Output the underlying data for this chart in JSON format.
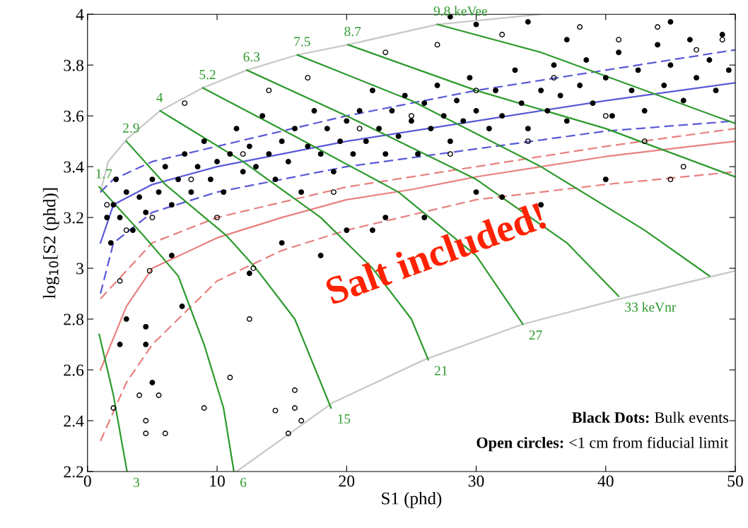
{
  "chart_data": {
    "type": "scatter",
    "xlabel": "S1 (phd)",
    "ylabel": "log$_{10}$[S2 (phd)]",
    "xlim": [
      0,
      50
    ],
    "xticks": [
      0,
      10,
      20,
      30,
      40,
      50
    ],
    "ylim": [
      2.2,
      4
    ],
    "yticks": [
      2.2,
      2.4,
      2.6,
      2.8,
      3,
      3.2,
      3.4,
      3.6,
      3.8,
      4
    ],
    "grid": false,
    "legend": false,
    "series": [
      {
        "type": "line",
        "color": "#c8c8c8",
        "line_style": "solid",
        "x": [
          1,
          1.6,
          3.06,
          5.6,
          8.9,
          12.3,
          16.2,
          20.1,
          27,
          35
        ],
        "values": [
          3.3,
          3.42,
          3.51,
          3.62,
          3.71,
          3.78,
          3.84,
          3.88,
          3.96,
          4.0
        ]
      },
      {
        "type": "line",
        "color": "#c8c8c8",
        "line_style": "solid",
        "x": [
          11.5,
          18.9,
          26,
          33.6,
          40.7,
          50
        ],
        "values": [
          2.2,
          2.47,
          2.64,
          2.78,
          2.875,
          2.99
        ]
      },
      {
        "type": "line",
        "color": "#5a5ad8",
        "line_style": "solid",
        "x": [
          1,
          2,
          5,
          10,
          20,
          30,
          40,
          50
        ],
        "values": [
          3.1,
          3.25,
          3.33,
          3.4,
          3.5,
          3.58,
          3.66,
          3.73
        ]
      },
      {
        "type": "line",
        "color": "#5a5ad8",
        "line_style": "dashed",
        "x": [
          1,
          2,
          5,
          10,
          20,
          30,
          40,
          50
        ],
        "values": [
          3.3,
          3.35,
          3.42,
          3.48,
          3.6,
          3.7,
          3.78,
          3.86
        ]
      },
      {
        "type": "line",
        "color": "#5a5ad8",
        "line_style": "dashed",
        "x": [
          1,
          2,
          5,
          10,
          20,
          30,
          40,
          50
        ],
        "values": [
          2.9,
          3.1,
          3.22,
          3.3,
          3.4,
          3.47,
          3.54,
          3.58
        ]
      },
      {
        "type": "line",
        "color": "#e88080",
        "line_style": "solid",
        "x": [
          1,
          3,
          5,
          10,
          15,
          20,
          25,
          30,
          40,
          50
        ],
        "values": [
          2.6,
          2.85,
          3.0,
          3.12,
          3.2,
          3.27,
          3.31,
          3.36,
          3.44,
          3.5
        ]
      },
      {
        "type": "line",
        "color": "#e88080",
        "line_style": "dashed",
        "x": [
          1,
          3,
          5,
          10,
          15,
          20,
          30,
          40,
          50
        ],
        "values": [
          2.32,
          2.55,
          2.7,
          2.95,
          3.07,
          3.15,
          3.27,
          3.33,
          3.38
        ]
      },
      {
        "type": "line",
        "color": "#e88080",
        "line_style": "dashed",
        "x": [
          1,
          5,
          10,
          20,
          30,
          40,
          50
        ],
        "values": [
          2.88,
          3.1,
          3.2,
          3.32,
          3.4,
          3.48,
          3.55
        ]
      },
      {
        "type": "line",
        "color": "#2e9a2e",
        "line_style": "solid",
        "x": [
          0.9,
          2,
          3.05
        ],
        "values": [
          2.74,
          2.5,
          2.2
        ]
      },
      {
        "type": "line",
        "color": "#2e9a2e",
        "line_style": "solid",
        "x": [
          0.9,
          4.3,
          7,
          9,
          10.5,
          11.3
        ],
        "values": [
          3.32,
          3.13,
          2.97,
          2.7,
          2.45,
          2.2
        ]
      },
      {
        "type": "line",
        "color": "#2e9a2e",
        "line_style": "solid",
        "x": [
          3,
          6,
          10.7,
          13,
          16,
          18.8
        ],
        "values": [
          3.5,
          3.33,
          3.13,
          3.0,
          2.8,
          2.45
        ]
      },
      {
        "type": "line",
        "color": "#2e9a2e",
        "line_style": "solid",
        "x": [
          5.6,
          12,
          18,
          22,
          25,
          26.3
        ],
        "values": [
          3.62,
          3.42,
          3.2,
          3.0,
          2.8,
          2.64
        ]
      },
      {
        "type": "line",
        "color": "#2e9a2e",
        "line_style": "solid",
        "x": [
          8.9,
          16,
          24,
          30,
          33.6
        ],
        "values": [
          3.71,
          3.52,
          3.3,
          3.05,
          2.78
        ]
      },
      {
        "type": "line",
        "color": "#2e9a2e",
        "line_style": "solid",
        "x": [
          12.3,
          20,
          30,
          37,
          41
        ],
        "values": [
          3.78,
          3.6,
          3.35,
          3.1,
          2.89
        ]
      },
      {
        "type": "line",
        "color": "#2e9a2e",
        "line_style": "solid",
        "x": [
          16.2,
          25,
          35,
          43,
          48
        ],
        "values": [
          3.84,
          3.66,
          3.4,
          3.15,
          2.97
        ]
      },
      {
        "type": "line",
        "color": "#2e9a2e",
        "line_style": "solid",
        "x": [
          20.1,
          30,
          40,
          50
        ],
        "values": [
          3.88,
          3.7,
          3.55,
          3.36
        ]
      },
      {
        "type": "line",
        "color": "#2e9a2e",
        "line_style": "solid",
        "x": [
          27,
          35,
          50
        ],
        "values": [
          3.96,
          3.85,
          3.57
        ]
      },
      {
        "color": "#000000",
        "marker": "circle",
        "x": [
          1.5,
          2,
          2.5,
          3,
          1.8,
          2.2,
          3.5,
          4,
          4.5,
          5,
          5.5,
          6,
          6.5,
          7,
          7.5,
          8,
          8.5,
          9,
          9.5,
          10,
          10.5,
          11,
          11.5,
          12,
          12.5,
          13,
          13.5,
          14,
          14.5,
          15,
          15.5,
          16,
          16.5,
          17,
          17.5,
          18,
          18.5,
          19,
          19.5,
          20,
          20.5,
          21,
          21.5,
          22,
          22.5,
          23,
          23.5,
          24,
          24.5,
          25,
          25.5,
          26,
          26.5,
          27,
          27.5,
          28,
          28.5,
          29,
          29.5,
          30,
          31,
          31.5,
          32,
          33,
          33.5,
          34,
          35,
          35.5,
          36,
          36.5,
          37,
          38,
          38.5,
          39,
          40,
          40.5,
          41,
          42,
          42.5,
          43,
          44,
          44.5,
          45,
          46,
          46.5,
          47,
          48,
          48.5,
          49,
          49.5,
          2.5,
          3,
          4.5,
          4.5,
          5,
          6.5,
          7.3,
          12.5,
          15,
          18,
          20,
          23,
          30,
          32,
          35,
          40,
          28,
          30,
          37,
          45,
          22,
          26,
          34
        ],
        "values": [
          3.2,
          3.25,
          3.2,
          3.3,
          3.1,
          3.35,
          3.15,
          3.28,
          3.22,
          3.35,
          3.3,
          3.4,
          3.25,
          3.35,
          3.45,
          3.3,
          3.4,
          3.5,
          3.35,
          3.42,
          3.3,
          3.45,
          3.55,
          3.38,
          3.48,
          3.4,
          3.6,
          3.45,
          3.35,
          3.5,
          3.42,
          3.55,
          3.3,
          3.48,
          3.62,
          3.45,
          3.55,
          3.38,
          3.5,
          3.58,
          3.45,
          3.62,
          3.5,
          3.7,
          3.55,
          3.45,
          3.62,
          3.52,
          3.68,
          3.58,
          3.45,
          3.65,
          3.55,
          3.72,
          3.6,
          3.5,
          3.66,
          3.58,
          3.75,
          3.62,
          3.55,
          3.7,
          3.6,
          3.78,
          3.65,
          3.55,
          3.7,
          3.62,
          3.8,
          3.68,
          3.58,
          3.72,
          3.82,
          3.65,
          3.75,
          3.6,
          3.85,
          3.7,
          3.78,
          3.62,
          3.88,
          3.72,
          3.8,
          3.66,
          3.9,
          3.75,
          3.82,
          3.7,
          3.92,
          3.78,
          2.7,
          2.8,
          2.77,
          2.7,
          2.55,
          3.05,
          2.85,
          2.98,
          3.1,
          3.05,
          3.15,
          3.2,
          3.3,
          3.28,
          3.25,
          3.35,
          3.99,
          3.96,
          3.9,
          3.97,
          3.15,
          3.2,
          3.97
        ]
      },
      {
        "color": "#000000",
        "marker": "circle",
        "x": [
          2,
          4,
          5.5,
          4.5,
          4.5,
          6,
          9,
          11,
          12.5,
          14.5,
          16,
          16,
          16.5,
          15.5,
          12.8,
          7.5,
          3,
          5,
          8,
          10,
          12,
          14,
          17,
          19,
          21,
          23,
          25,
          27,
          28,
          30,
          32,
          34,
          36,
          38,
          40,
          41,
          43,
          44,
          46,
          47,
          49,
          45,
          2.5,
          4.8,
          1.5
        ],
        "values": [
          2.45,
          2.5,
          2.5,
          2.4,
          2.35,
          2.35,
          2.45,
          2.57,
          2.8,
          2.44,
          2.52,
          2.45,
          2.4,
          2.35,
          3.0,
          3.65,
          3.15,
          3.2,
          3.35,
          3.2,
          3.45,
          3.7,
          3.75,
          3.3,
          3.55,
          3.85,
          3.6,
          3.88,
          3.45,
          3.7,
          3.92,
          3.5,
          3.75,
          3.95,
          3.6,
          3.9,
          3.5,
          3.95,
          3.4,
          3.86,
          3.9,
          3.35,
          2.95,
          2.99,
          3.25
        ]
      }
    ],
    "annotations": [
      "1.7",
      "2.9",
      "4",
      "5.2",
      "6.3",
      "7.5",
      "8.7",
      "9.8 keVee",
      "3",
      "6",
      "15",
      "21",
      "27",
      "33 keVnr",
      "Black Dots: Bulk events",
      "Open circles: <1 cm from fiducial limit",
      "Salt included!"
    ]
  }
}
